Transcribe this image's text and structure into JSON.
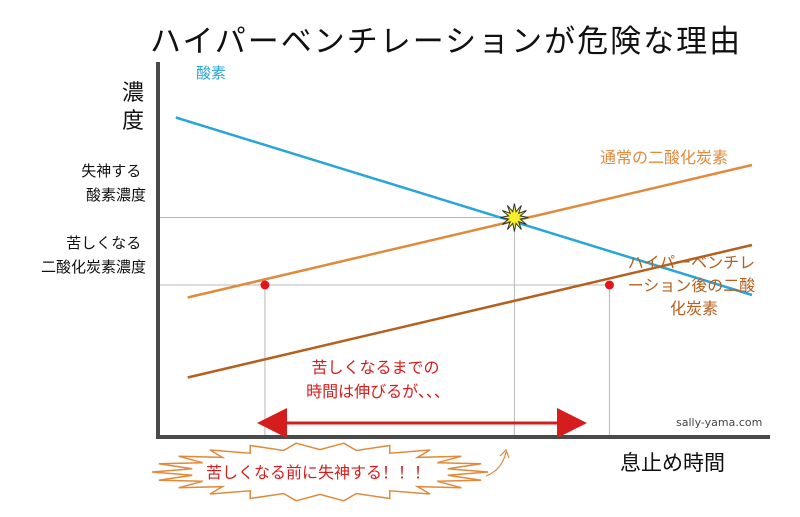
{
  "chart_data": {
    "type": "line",
    "title": "ハイパーベンチレーションが危険な理由",
    "ylabel": "濃度",
    "xlabel": "息止め時間",
    "grid": false,
    "x_range": [
      0,
      100
    ],
    "y_range": [
      0,
      100
    ],
    "series": [
      {
        "name": "酸素",
        "color": "#2aa6d6",
        "x": [
          3,
          100
        ],
        "y": [
          85,
          14
        ]
      },
      {
        "name": "通常の二酸化炭素",
        "color": "#e08a3c",
        "x": [
          5,
          100
        ],
        "y": [
          13,
          66
        ]
      },
      {
        "name": "ハイパーベンチレーション後の二酸化炭素",
        "color": "#b5601e",
        "x": [
          5,
          100
        ],
        "y": [
          -19,
          34
        ]
      }
    ],
    "thresholds": [
      {
        "label": "失神する酸素濃度",
        "y": 45
      },
      {
        "label": "苦しくなる二酸化炭素濃度",
        "y": 18
      }
    ],
    "markers": [
      {
        "type": "dot",
        "x": 18,
        "y": 18,
        "color": "#e3141b"
      },
      {
        "type": "dot",
        "x": 76,
        "y": 18,
        "color": "#e3141b"
      },
      {
        "type": "burst",
        "x": 60,
        "y": 45,
        "color": "#f7f02a"
      }
    ],
    "annotations": [
      {
        "text": "苦しくなるまでの",
        "color": "#d61d1d"
      },
      {
        "text": "時間は伸びるが、、、",
        "color": "#d61d1d"
      }
    ],
    "callout": {
      "text": "苦しくなる前に失神する！！！",
      "color": "#d61d1d"
    },
    "watermark": "sally-yama.com"
  }
}
